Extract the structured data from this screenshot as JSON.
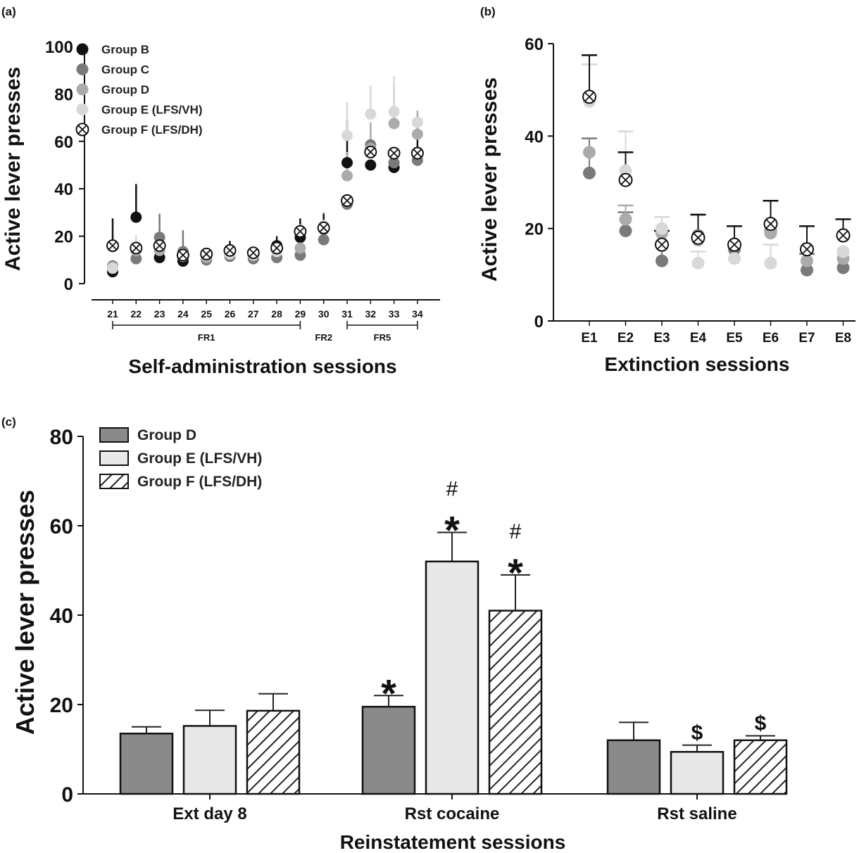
{
  "chart_data": [
    {
      "panel": "(a)",
      "type": "scatter",
      "title": "",
      "xlabel": "Self-administration sessions",
      "ylabel": "Active lever presses",
      "ylim": [
        0,
        100
      ],
      "yticks": [
        0,
        20,
        40,
        60,
        80,
        100
      ],
      "categories": [
        "21",
        "22",
        "23",
        "24",
        "25",
        "26",
        "27",
        "28",
        "29",
        "30",
        "31",
        "32",
        "33",
        "34"
      ],
      "phases": [
        {
          "label": "FR1",
          "from": "21",
          "to": "29"
        },
        {
          "label": "FR2",
          "from": "30",
          "to": "30"
        },
        {
          "label": "FR5",
          "from": "31",
          "to": "34"
        }
      ],
      "series": [
        {
          "name": "Group B",
          "color": "#111111",
          "marker": "filled",
          "values": [
            5,
            28,
            11,
            9.5,
            11.5,
            12,
            13,
            16,
            19.5,
            23,
            51,
            50,
            49,
            55
          ],
          "errors": [
            0,
            14,
            0,
            0,
            0,
            0,
            1.5,
            4,
            0,
            2,
            18,
            0,
            0,
            16
          ]
        },
        {
          "name": "Group C",
          "color": "#7a7a7a",
          "marker": "filled",
          "values": [
            7.5,
            10.5,
            19.5,
            13.5,
            10,
            11.5,
            10.5,
            11,
            12,
            18.5,
            33.5,
            58.5,
            51,
            52
          ],
          "errors": [
            0,
            0,
            10,
            9,
            0,
            0,
            0,
            0,
            0,
            0,
            0,
            0,
            0,
            0
          ]
        },
        {
          "name": "Group D",
          "color": "#ababab",
          "marker": "filled",
          "values": [
            7,
            14,
            14,
            12.5,
            11,
            12.5,
            12.5,
            14,
            15,
            24,
            45.5,
            57,
            67.5,
            63
          ],
          "errors": [
            0,
            0,
            0,
            0,
            0,
            0,
            0,
            0,
            0,
            6,
            10,
            11,
            16,
            10
          ]
        },
        {
          "name": "Group E (LFS/VH)",
          "color": "#d8d8d8",
          "marker": "filled",
          "values": [
            6.5,
            14.5,
            15.5,
            11.5,
            12,
            12.5,
            12,
            13.5,
            22.5,
            24.5,
            62.5,
            71.5,
            72.5,
            68
          ],
          "errors": [
            0,
            6,
            0,
            0,
            0,
            0,
            0,
            0,
            0,
            0,
            14,
            12,
            15,
            0
          ]
        },
        {
          "name": "Group F (LFS/DH)",
          "color": "#111111",
          "marker": "circle-x",
          "values": [
            16,
            15,
            16,
            12,
            12.5,
            14,
            13,
            15,
            22,
            23.5,
            35,
            55.5,
            55,
            55
          ],
          "errors": [
            11.5,
            0,
            0,
            0,
            0,
            4,
            0,
            0,
            5.5,
            6,
            0,
            0,
            0,
            0
          ]
        }
      ],
      "legend": [
        "Group B",
        "Group C",
        "Group D",
        "Group E (LFS/VH)",
        "Group F (LFS/DH)"
      ]
    },
    {
      "panel": "(b)",
      "type": "scatter",
      "title": "",
      "xlabel": "Extinction sessions",
      "ylabel": "Active lever presses",
      "ylim": [
        0,
        60
      ],
      "yticks": [
        0,
        20,
        40,
        60
      ],
      "categories": [
        "E1",
        "E2",
        "E3",
        "E4",
        "E5",
        "E6",
        "E7",
        "E8"
      ],
      "series": [
        {
          "name": "Group B",
          "color": "#111111",
          "marker": "filled",
          "values": [
            null,
            null,
            null,
            null,
            null,
            null,
            null,
            null
          ],
          "errors": [
            0,
            0,
            0,
            0,
            0,
            0,
            0,
            0
          ]
        },
        {
          "name": "Group C",
          "color": "#7a7a7a",
          "marker": "filled",
          "values": [
            32,
            19.5,
            13,
            18.5,
            15.5,
            19.5,
            11,
            11.5
          ],
          "errors": [
            7.5,
            4,
            6.5,
            4.5,
            0,
            6.5,
            3.5,
            0
          ]
        },
        {
          "name": "Group D",
          "color": "#ababab",
          "marker": "filled",
          "values": [
            36.5,
            22,
            19,
            17.5,
            16.5,
            19,
            13,
            13.5
          ],
          "errors": [
            0,
            3,
            0,
            0,
            0,
            0,
            0,
            0
          ]
        },
        {
          "name": "Group E (LFS/VH)",
          "color": "#d8d8d8",
          "marker": "filled",
          "values": [
            47.5,
            32.5,
            20,
            12.5,
            13.5,
            12.5,
            15.5,
            15
          ],
          "errors": [
            8,
            8.5,
            2.5,
            2.5,
            0,
            4,
            0,
            0
          ]
        },
        {
          "name": "Group F (LFS/DH)",
          "color": "#111111",
          "marker": "circle-x",
          "values": [
            48.5,
            30.5,
            16.5,
            18,
            16.5,
            21,
            15.5,
            18.5
          ],
          "errors": [
            9,
            6,
            3,
            5,
            4,
            5,
            5,
            3.5
          ]
        }
      ]
    },
    {
      "panel": "(c)",
      "type": "bar",
      "title": "",
      "xlabel": "Reinstatement sessions",
      "ylabel": "Active lever presses",
      "ylim": [
        0,
        80
      ],
      "yticks": [
        0,
        20,
        40,
        60,
        80
      ],
      "categories": [
        "Ext day 8",
        "Rst cocaine",
        "Rst saline"
      ],
      "series": [
        {
          "name": "Group D",
          "fill": "#8a8a8a",
          "pattern": "solid",
          "values": [
            13.5,
            19.5,
            12
          ],
          "errors": [
            1.5,
            2.5,
            4
          ],
          "marks": [
            "",
            "*",
            ""
          ]
        },
        {
          "name": "Group E (LFS/VH)",
          "fill": "#e8e8e8",
          "pattern": "solid",
          "values": [
            15.2,
            52,
            9.4
          ],
          "errors": [
            3.5,
            6.5,
            1.5
          ],
          "marks": [
            "",
            "#*",
            "$"
          ]
        },
        {
          "name": "Group F (LFS/DH)",
          "fill": "#ffffff",
          "pattern": "hatch",
          "values": [
            18.6,
            41,
            12
          ],
          "errors": [
            3.8,
            8,
            1
          ],
          "marks": [
            "",
            "#*",
            "$"
          ]
        }
      ],
      "legend": [
        "Group D",
        "Group E (LFS/VH)",
        "Group F (LFS/DH)"
      ]
    }
  ]
}
